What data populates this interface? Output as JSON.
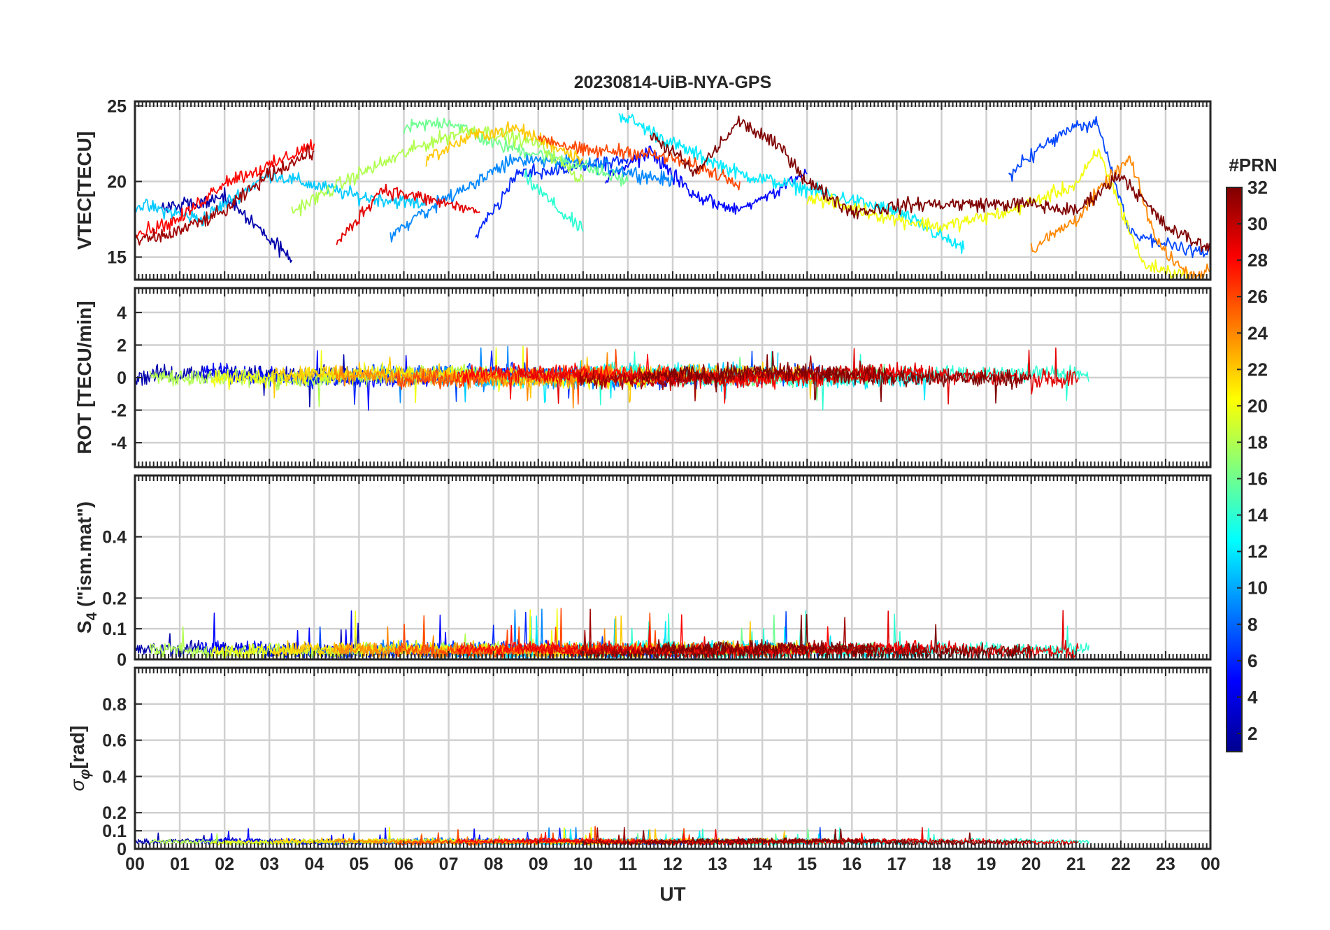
{
  "chart_data": {
    "type": "line",
    "title": "20230814-UiB-NYA-GPS",
    "xlabel": "UT",
    "x_ticks": [
      "00",
      "01",
      "02",
      "03",
      "04",
      "05",
      "06",
      "07",
      "08",
      "09",
      "10",
      "11",
      "12",
      "13",
      "14",
      "15",
      "16",
      "17",
      "18",
      "19",
      "20",
      "21",
      "22",
      "23",
      "00"
    ],
    "x_range_hours": [
      0,
      24
    ],
    "grid": true,
    "colorbar": {
      "label": "#PRN",
      "range": [
        1,
        32
      ],
      "ticks": [
        "2",
        "4",
        "6",
        "8",
        "10",
        "12",
        "14",
        "16",
        "18",
        "20",
        "22",
        "24",
        "26",
        "28",
        "30",
        "32"
      ],
      "colormap": "jet",
      "colors": [
        "#00008f",
        "#0000ff",
        "#007fff",
        "#00ffff",
        "#7fff7f",
        "#ffff00",
        "#ff7f00",
        "#ff0000",
        "#7f0000"
      ]
    },
    "panels": [
      {
        "ylabel": "VTEC[TECU]",
        "ylim": [
          13.5,
          25.3
        ],
        "yticks": [
          15,
          20,
          25
        ],
        "ytick_labels": [
          "15",
          "20",
          "25"
        ],
        "baseline": 19.2,
        "amplitude": 1.8,
        "noise": 0.4,
        "series": [
          {
            "prn": 2,
            "values": [
              [
                0.6,
                18.2
              ],
              [
                2,
                19.0
              ],
              [
                3.5,
                14.8
              ]
            ]
          },
          {
            "prn": 5,
            "values": [
              [
                10.5,
                20.2
              ],
              [
                11.5,
                22.0
              ],
              [
                12.5,
                19.0
              ],
              [
                13.5,
                18.0
              ],
              [
                15,
                20.5
              ]
            ]
          },
          {
            "prn": 6,
            "values": [
              [
                7.6,
                16.4
              ],
              [
                8.5,
                20.5
              ],
              [
                10,
                21.0
              ],
              [
                11,
                21.5
              ]
            ]
          },
          {
            "prn": 7,
            "values": [
              [
                19.5,
                20.5
              ],
              [
                20.8,
                23.5
              ],
              [
                21.5,
                23.8
              ],
              [
                22.2,
                16.5
              ],
              [
                23.5,
                15.5
              ],
              [
                24,
                15.3
              ]
            ]
          },
          {
            "prn": 9,
            "values": [
              [
                5.7,
                16.5
              ],
              [
                7,
                19.0
              ],
              [
                8.5,
                21.5
              ],
              [
                10.5,
                21.0
              ],
              [
                12,
                20.0
              ]
            ]
          },
          {
            "prn": 11,
            "values": [
              [
                0,
                18.5
              ],
              [
                1.5,
                17.5
              ],
              [
                3,
                20.5
              ],
              [
                5,
                19.0
              ],
              [
                6.5,
                18.5
              ]
            ]
          },
          {
            "prn": 12,
            "values": [
              [
                10.8,
                24.5
              ],
              [
                12,
                22.5
              ],
              [
                13.5,
                20.5
              ],
              [
                15,
                19.5
              ],
              [
                17,
                18.0
              ],
              [
                18.5,
                15.5
              ]
            ]
          },
          {
            "prn": 14,
            "values": [
              [
                8.7,
                20.3
              ],
              [
                9.5,
                18.0
              ],
              [
                10,
                16.7
              ]
            ]
          },
          {
            "prn": 16,
            "values": [
              [
                6,
                23.5
              ],
              [
                7,
                24.0
              ],
              [
                8,
                22.5
              ],
              [
                9.5,
                21.5
              ],
              [
                11,
                20.0
              ]
            ]
          },
          {
            "prn": 18,
            "values": [
              [
                3.5,
                18.0
              ],
              [
                5,
                20.5
              ],
              [
                6.5,
                22.5
              ],
              [
                7.5,
                23.5
              ],
              [
                9,
                22.5
              ],
              [
                10,
                20.0
              ]
            ]
          },
          {
            "prn": 20,
            "values": [
              [
                15,
                19.0
              ],
              [
                17,
                17.5
              ],
              [
                18,
                17.0
              ],
              [
                19.5,
                18.0
              ],
              [
                21,
                19.8
              ],
              [
                21.5,
                22.0
              ],
              [
                22.5,
                14.5
              ],
              [
                23.5,
                13.7
              ]
            ]
          },
          {
            "prn": 22,
            "values": [
              [
                6.5,
                21.5
              ],
              [
                7.5,
                23.0
              ],
              [
                8.5,
                23.5
              ],
              [
                10,
                21.5
              ]
            ]
          },
          {
            "prn": 24,
            "values": [
              [
                20,
                15.5
              ],
              [
                21,
                17.5
              ],
              [
                21.7,
                20.0
              ],
              [
                22.2,
                21.5
              ],
              [
                22.8,
                16.0
              ],
              [
                23.5,
                13.8
              ],
              [
                24,
                14.0
              ]
            ]
          },
          {
            "prn": 26,
            "values": [
              [
                9,
                23.0
              ],
              [
                10,
                22.0
              ],
              [
                11,
                22.0
              ],
              [
                12,
                21.5
              ],
              [
                13.5,
                20.0
              ]
            ]
          },
          {
            "prn": 28,
            "values": [
              [
                0,
                16.5
              ],
              [
                1,
                17.5
              ],
              [
                2,
                20.0
              ],
              [
                3,
                21.0
              ],
              [
                4,
                22.5
              ]
            ]
          },
          {
            "prn": 29,
            "values": [
              [
                4.5,
                15.8
              ],
              [
                5.5,
                19.5
              ],
              [
                7,
                18.5
              ],
              [
                7.7,
                18.0
              ]
            ]
          },
          {
            "prn": 31,
            "values": [
              [
                0,
                16.0
              ],
              [
                0.8,
                16.5
              ],
              [
                2,
                18.0
              ],
              [
                3,
                20.5
              ],
              [
                4,
                22.0
              ]
            ]
          },
          {
            "prn": 32,
            "values": [
              [
                11.5,
                23.0
              ],
              [
                12,
                22.0
              ],
              [
                12.5,
                20.5
              ],
              [
                13.5,
                24.0
              ],
              [
                14.5,
                22.0
              ],
              [
                15,
                20.0
              ],
              [
                16,
                18.0
              ],
              [
                17.5,
                18.5
              ],
              [
                18.5,
                18.5
              ],
              [
                20,
                18.5
              ],
              [
                21,
                18.0
              ],
              [
                22,
                20.5
              ],
              [
                23,
                17.0
              ],
              [
                24,
                15.5
              ]
            ]
          }
        ]
      },
      {
        "ylabel": "ROT [TECU/min]",
        "ylim": [
          -5.5,
          5.5
        ],
        "yticks": [
          -4,
          -2,
          0,
          2,
          4
        ],
        "ytick_labels": [
          "-4",
          "-2",
          "0",
          "2",
          "4"
        ],
        "baseline": 0.1,
        "amplitude": 0.2,
        "noise": 0.45
      },
      {
        "ylabel": "S4 (\"ism.mat\")",
        "ylabel_main": "S",
        "ylabel_sub": "4",
        "ylabel_tail": " (\"ism.mat\")",
        "ylim": [
          0,
          0.6
        ],
        "yticks": [
          0,
          0.1,
          0.2,
          0.4
        ],
        "ytick_labels": [
          "0",
          "0.1",
          "0.2",
          "0.4"
        ],
        "baseline": 0.03,
        "amplitude": 0.005,
        "noise": 0.02,
        "floor": 0.005
      },
      {
        "ylabel": "σφ[rad]",
        "ylabel_main": "σ",
        "ylabel_sub": "φ",
        "ylabel_tail": "[rad]",
        "ylim": [
          0,
          1.0
        ],
        "yticks": [
          0,
          0.1,
          0.2,
          0.4,
          0.6,
          0.8
        ],
        "ytick_labels": [
          "0",
          "0.1",
          "0.2",
          "0.4",
          "0.6",
          "0.8"
        ],
        "baseline": 0.04,
        "amplitude": 0.005,
        "noise": 0.012,
        "floor": 0.02
      }
    ]
  }
}
